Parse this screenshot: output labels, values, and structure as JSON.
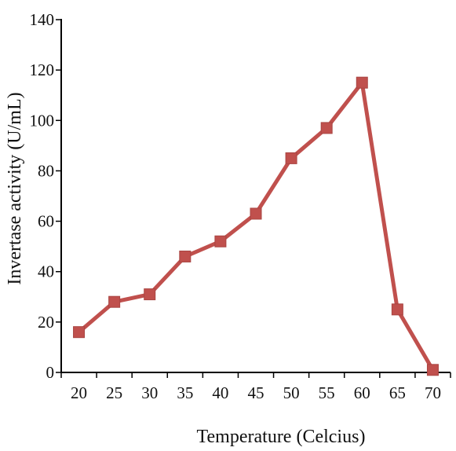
{
  "chart_data": {
    "type": "line",
    "title": "",
    "xlabel": "Temperature (Celcius)",
    "ylabel": "Invertase activity (U/mL)",
    "categories": [
      "20",
      "25",
      "30",
      "35",
      "40",
      "45",
      "50",
      "55",
      "60",
      "65",
      "70"
    ],
    "series": [
      {
        "values": [
          16,
          28,
          31,
          46,
          52,
          63,
          85,
          97,
          115,
          25,
          1
        ]
      }
    ],
    "ylim": [
      0,
      140
    ],
    "yticks": [
      0,
      20,
      40,
      60,
      80,
      100,
      120,
      140
    ],
    "grid": false,
    "legend": "none",
    "colors": {
      "series": "#C0504D",
      "axis": "#000000"
    }
  }
}
